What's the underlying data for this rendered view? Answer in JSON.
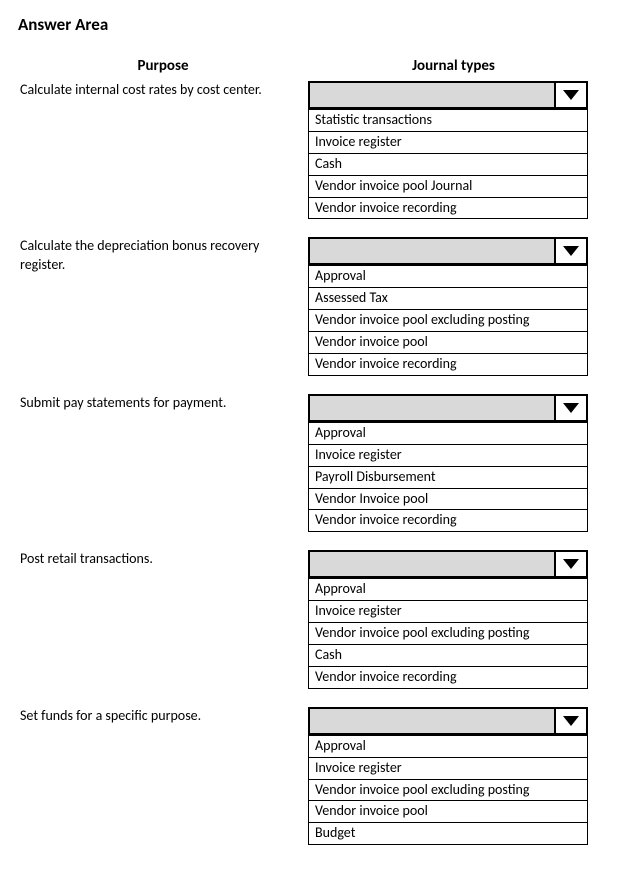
{
  "title": "Answer Area",
  "headers": {
    "purpose": "Purpose",
    "journal": "Journal types"
  },
  "rows": [
    {
      "purpose": "Calculate internal cost rates by cost center.",
      "options": [
        "Statistic transactions",
        "Invoice register",
        "Cash",
        "Vendor invoice pool Journal",
        "Vendor invoice recording"
      ]
    },
    {
      "purpose": "Calculate the depreciation bonus recovery register.",
      "options": [
        "Approval",
        "Assessed Tax",
        "Vendor invoice pool excluding posting",
        "Vendor invoice pool",
        "Vendor invoice recording"
      ]
    },
    {
      "purpose": "Submit pay statements for payment.",
      "options": [
        "Approval",
        "Invoice register",
        "Payroll Disbursement",
        "Vendor Invoice pool",
        "Vendor invoice recording"
      ]
    },
    {
      "purpose": "Post retail transactions.",
      "options": [
        "Approval",
        "Invoice register",
        "Vendor invoice pool excluding posting",
        "Cash",
        "Vendor invoice recording"
      ]
    },
    {
      "purpose": "Set funds for a specific purpose.",
      "options": [
        "Approval",
        "Invoice register",
        "Vendor invoice pool excluding posting",
        "Vendor invoice pool",
        "Budget"
      ]
    }
  ]
}
